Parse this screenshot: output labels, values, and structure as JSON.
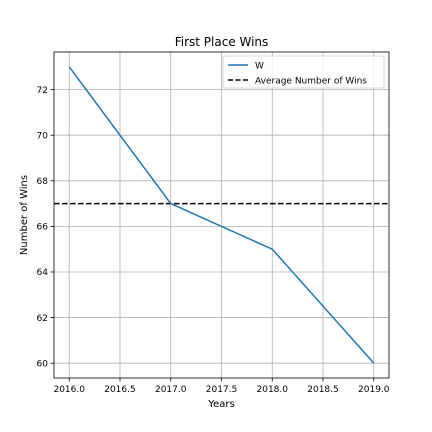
{
  "chart_data": {
    "type": "line",
    "title": "First Place Wins",
    "xlabel": "Years",
    "ylabel": "Number of Wins",
    "xlim": [
      2015.85,
      2019.15
    ],
    "ylim": [
      59.35,
      73.65
    ],
    "xticks": [
      2016.0,
      2016.5,
      2017.0,
      2017.5,
      2018.0,
      2018.5,
      2019.0
    ],
    "xtick_labels": [
      "2016.0",
      "2016.5",
      "2017.0",
      "2017.5",
      "2018.0",
      "2018.5",
      "2019.0"
    ],
    "yticks": [
      60,
      62,
      64,
      66,
      68,
      70,
      72
    ],
    "ytick_labels": [
      "60",
      "62",
      "64",
      "66",
      "68",
      "70",
      "72"
    ],
    "grid": true,
    "legend_position": "top-right",
    "series": [
      {
        "name": "W",
        "style": "solid",
        "color": "#1f77b4",
        "x": [
          2016,
          2017,
          2018,
          2019
        ],
        "y": [
          73,
          67,
          65,
          60
        ]
      }
    ],
    "reference_lines": [
      {
        "name": "Average Number of Wins",
        "orientation": "horizontal",
        "value": 67,
        "style": "dashed",
        "color": "#000000"
      }
    ]
  }
}
